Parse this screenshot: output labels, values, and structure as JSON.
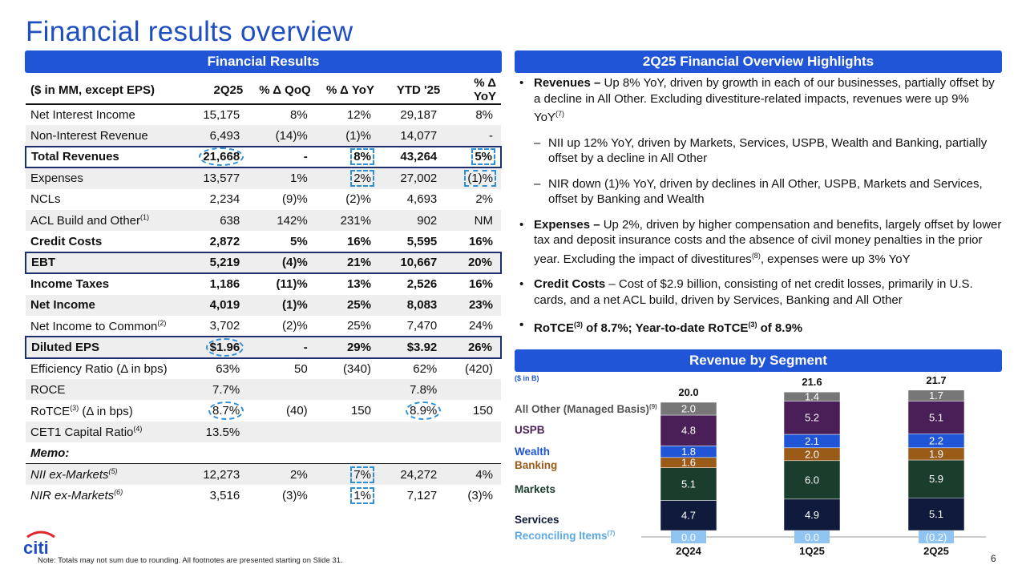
{
  "title": "Financial results overview",
  "financial_results": {
    "header": "Financial Results",
    "columns": [
      "($ in MM, except EPS)",
      "2Q25",
      "% Δ QoQ",
      "% Δ YoY",
      "YTD '25",
      "% Δ YoY"
    ],
    "rows": [
      {
        "label": "Net Interest Income",
        "sup": "",
        "q": "15,175",
        "qoq": "8%",
        "yoy": "12%",
        "ytd": "29,187",
        "yoy2": "8%"
      },
      {
        "label": "Non-Interest Revenue",
        "sup": "",
        "q": "6,493",
        "qoq": "(14)%",
        "yoy": "(1)%",
        "ytd": "14,077",
        "yoy2": "-"
      },
      {
        "label": "Total Revenues",
        "sup": "",
        "q": "21,668",
        "qoq": "-",
        "yoy": "8%",
        "ytd": "43,264",
        "yoy2": "5%"
      },
      {
        "label": "Expenses",
        "sup": "",
        "q": "13,577",
        "qoq": "1%",
        "yoy": "2%",
        "ytd": "27,002",
        "yoy2": "(1)%"
      },
      {
        "label": "NCLs",
        "sup": "",
        "q": "2,234",
        "qoq": "(9)%",
        "yoy": "(2)%",
        "ytd": "4,693",
        "yoy2": "2%"
      },
      {
        "label": "ACL Build and Other",
        "sup": "(1)",
        "q": "638",
        "qoq": "142%",
        "yoy": "231%",
        "ytd": "902",
        "yoy2": "NM"
      },
      {
        "label": "Credit Costs",
        "sup": "",
        "q": "2,872",
        "qoq": "5%",
        "yoy": "16%",
        "ytd": "5,595",
        "yoy2": "16%"
      },
      {
        "label": "EBT",
        "sup": "",
        "q": "5,219",
        "qoq": "(4)%",
        "yoy": "21%",
        "ytd": "10,667",
        "yoy2": "20%"
      },
      {
        "label": "Income Taxes",
        "sup": "",
        "q": "1,186",
        "qoq": "(11)%",
        "yoy": "13%",
        "ytd": "2,526",
        "yoy2": "16%"
      },
      {
        "label": "Net Income",
        "sup": "",
        "q": "4,019",
        "qoq": "(1)%",
        "yoy": "25%",
        "ytd": "8,083",
        "yoy2": "23%"
      },
      {
        "label": "Net Income to Common",
        "sup": "(2)",
        "q": "3,702",
        "qoq": "(2)%",
        "yoy": "25%",
        "ytd": "7,470",
        "yoy2": "24%"
      },
      {
        "label": "Diluted EPS",
        "sup": "",
        "q": "$1.96",
        "qoq": "-",
        "yoy": "29%",
        "ytd": "$3.92",
        "yoy2": "26%"
      },
      {
        "label": "Efficiency Ratio (Δ in bps)",
        "sup": "",
        "q": "63%",
        "qoq": "50",
        "yoy": "(340)",
        "ytd": "62%",
        "yoy2": "(420)"
      },
      {
        "label": "ROCE",
        "sup": "",
        "q": "7.7%",
        "qoq": "",
        "yoy": "",
        "ytd": "7.8%",
        "yoy2": ""
      },
      {
        "label": "RoTCE",
        "sup": "(3)",
        "label_suffix": " (Δ in bps)",
        "q": "8.7%",
        "qoq": "(40)",
        "yoy": "150",
        "ytd": "8.9%",
        "yoy2": "150"
      },
      {
        "label": "CET1 Capital Ratio",
        "sup": "(4)",
        "q": "13.5%",
        "qoq": "",
        "yoy": "",
        "ytd": "",
        "yoy2": ""
      },
      {
        "label": "Memo:",
        "sup": "",
        "q": "",
        "qoq": "",
        "yoy": "",
        "ytd": "",
        "yoy2": ""
      },
      {
        "label": "NII ex-Markets",
        "sup": "(5)",
        "q": "12,273",
        "qoq": "2%",
        "yoy": "7%",
        "ytd": "24,272",
        "yoy2": "4%"
      },
      {
        "label": "NIR ex-Markets",
        "sup": "(6)",
        "q": "3,516",
        "qoq": "(3)%",
        "yoy": "1%",
        "ytd": "7,127",
        "yoy2": "(3)%"
      }
    ]
  },
  "highlights": {
    "header": "2Q25 Financial Overview Highlights",
    "revenues_lead": "Revenues – ",
    "revenues_text": "Up 8% YoY, driven by growth in each of our businesses, partially offset by a decline in All Other. Excluding divestiture-related impacts, revenues were up 9% YoY",
    "revenues_sup": "(7)",
    "nii_text": "NII up 12% YoY, driven by Markets, Services, USPB, Wealth and Banking, partially offset by a decline in All Other",
    "nir_text": "NIR down (1)% YoY, driven by declines in All Other, USPB, Markets and Services, offset by Banking and Wealth",
    "expenses_lead": "Expenses – ",
    "expenses_text_1": "Up 2%, driven by higher compensation and benefits, largely offset by lower tax and deposit insurance costs and the absence of civil money penalties in the prior year. Excluding the impact of divestitures",
    "expenses_sup": "(8)",
    "expenses_text_2": ", expenses were up 3% YoY",
    "credit_lead": "Credit Costs ",
    "credit_text": "– Cost of $2.9 billion, consisting of net credit losses, primarily in U.S. cards, and a net ACL build, driven by Services, Banking and All Other",
    "rotce_lead": "RoTCE",
    "rotce_sup": "(3)",
    "rotce_mid": " of 8.7%; Year-to-date RoTCE",
    "rotce_sup2": "(3)",
    "rotce_end": " of 8.9%"
  },
  "revenue_by_segment": {
    "header": "Revenue by Segment",
    "units": "($ in B)"
  },
  "chart_data": {
    "type": "bar",
    "stacked": true,
    "title": "Revenue by Segment",
    "units": "($ in B)",
    "categories": [
      "2Q24",
      "1Q25",
      "2Q25"
    ],
    "totals": [
      "20.0",
      "21.6",
      "21.7"
    ],
    "series": [
      {
        "name": "Reconciling Items",
        "sup": "(7)",
        "color": "#8fc3f0",
        "text_color": "#5aa9e6",
        "values": [
          0.0,
          0.0,
          -0.2
        ],
        "labels": [
          "0.0",
          "0.0",
          "(0.2)"
        ]
      },
      {
        "name": "Services",
        "sup": "",
        "color": "#0f1a3c",
        "text_color": "#0f1a3c",
        "values": [
          4.7,
          4.9,
          5.1
        ],
        "labels": [
          "4.7",
          "4.9",
          "5.1"
        ]
      },
      {
        "name": "Markets",
        "sup": "",
        "color": "#1b3d2b",
        "text_color": "#1b3d2b",
        "values": [
          5.1,
          6.0,
          5.9
        ],
        "labels": [
          "5.1",
          "6.0",
          "5.9"
        ]
      },
      {
        "name": "Banking",
        "sup": "",
        "color": "#9a5a18",
        "text_color": "#9a5a18",
        "values": [
          1.6,
          2.0,
          1.9
        ],
        "labels": [
          "1.6",
          "2.0",
          "1.9"
        ]
      },
      {
        "name": "Wealth",
        "sup": "",
        "color": "#1f55d6",
        "text_color": "#1f55d6",
        "values": [
          1.8,
          2.1,
          2.2
        ],
        "labels": [
          "1.8",
          "2.1",
          "2.2"
        ]
      },
      {
        "name": "USPB",
        "sup": "",
        "color": "#4a1e57",
        "text_color": "#4a1e57",
        "values": [
          4.8,
          5.2,
          5.1
        ],
        "labels": [
          "4.8",
          "5.2",
          "5.1"
        ]
      },
      {
        "name": "All Other (Managed Basis)",
        "sup": "(9)",
        "color": "#777777",
        "text_color": "#555555",
        "values": [
          2.0,
          1.4,
          1.7
        ],
        "labels": [
          "2.0",
          "1.4",
          "1.7"
        ]
      }
    ]
  },
  "footnote": "Note:  Totals may not sum due to rounding. All footnotes are presented starting on Slide 31.",
  "page_number": "6",
  "logo_text": "citi"
}
